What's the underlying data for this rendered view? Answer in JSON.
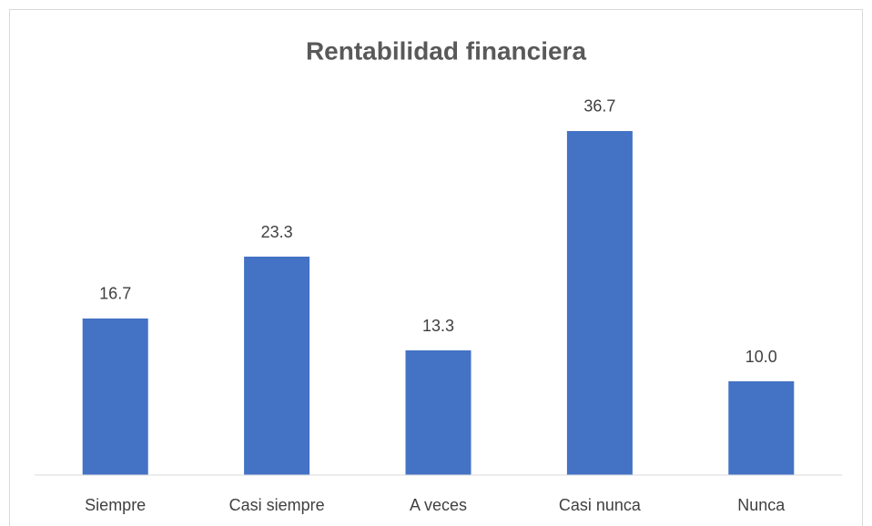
{
  "chart_data": {
    "type": "bar",
    "title": "Rentabilidad financiera",
    "categories": [
      "Siempre",
      "Casi siempre",
      "A veces",
      "Casi nunca",
      "Nunca"
    ],
    "values": [
      16.7,
      23.3,
      13.3,
      36.7,
      10.0
    ],
    "value_labels": [
      "16.7",
      "23.3",
      "13.3",
      "36.7",
      "10.0"
    ],
    "color": "#4472c4",
    "ylim": [
      0,
      40
    ]
  }
}
